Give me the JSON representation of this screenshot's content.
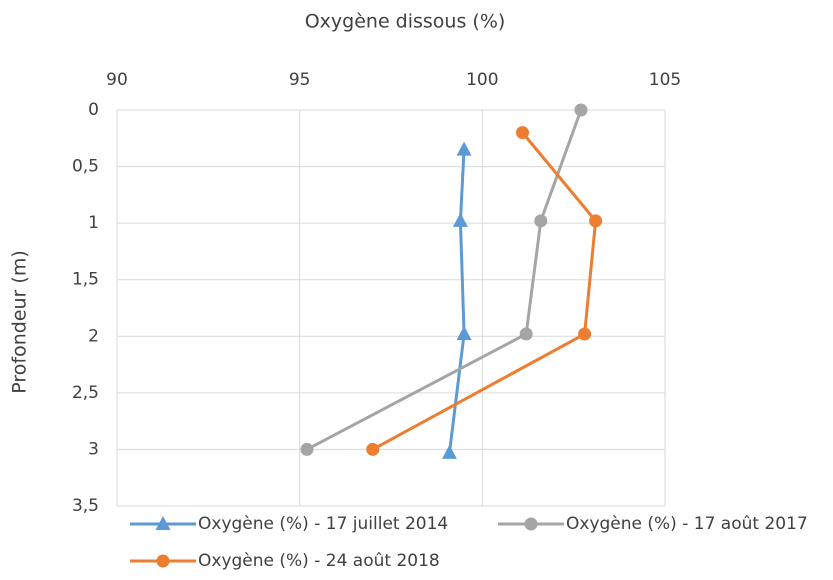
{
  "chart_data": {
    "type": "line",
    "x_label": "Oxygène dissous (%)",
    "y_label": "Profondeur (m)",
    "xlim": [
      90,
      105
    ],
    "xticks": [
      90,
      95,
      100,
      105
    ],
    "ylim": [
      0,
      3.5
    ],
    "yticks": [
      0,
      {
        "value": 0.5,
        "label": "0,5"
      },
      1,
      {
        "value": 1.5,
        "label": "1,5"
      },
      2,
      {
        "value": 2.5,
        "label": "2,5"
      },
      3,
      {
        "value": 3.5,
        "label": "3,5"
      }
    ],
    "y_inverted": true,
    "x_axis_position": "top",
    "grid": true,
    "legend": "bottom",
    "series": [
      {
        "name": "Oxygène (%) - 17 juillet 2014",
        "color": "#5b9bd5",
        "marker": "triangle",
        "x": [
          99.5,
          99.4,
          99.5,
          99.1
        ],
        "y": [
          0.35,
          0.98,
          1.98,
          3.03
        ]
      },
      {
        "name": "Oxygène (%) - 17 août 2017",
        "color": "#a5a5a5",
        "marker": "circle",
        "x": [
          102.7,
          101.6,
          101.2,
          95.2
        ],
        "y": [
          0,
          0.98,
          1.98,
          3
        ]
      },
      {
        "name": "Oxygène (%) - 24 août 2018",
        "color": "#ed7d31",
        "marker": "circle",
        "x": [
          101.1,
          103.1,
          102.8,
          97.0
        ],
        "y": [
          0.2,
          0.98,
          1.98,
          3
        ]
      }
    ]
  }
}
